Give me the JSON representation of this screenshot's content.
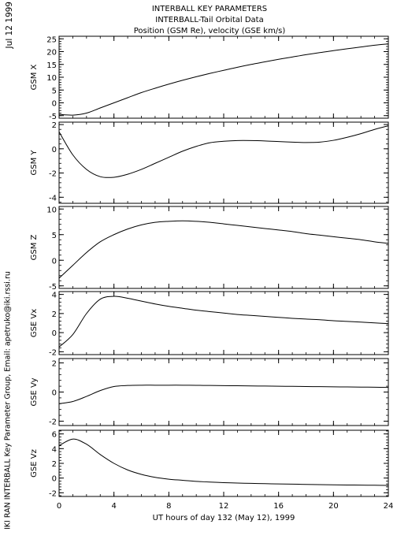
{
  "header": {
    "date": "Jul 12 1999",
    "lines": [
      "INTERBALL KEY PARAMETERS",
      "INTERBALL-Tail Orbital Data",
      "Position (GSM Re), velocity (GSE km/s)"
    ],
    "credit": "IKI RAN INTERBALL Key Parameter Group, Email: apetruko@iki.rssi.ru"
  },
  "chart_data": {
    "type": "line",
    "xlabel": "UT hours of day 132 (May 12), 1999",
    "xlim": [
      0,
      24
    ],
    "xticks": [
      0,
      4,
      8,
      12,
      16,
      20,
      24
    ],
    "panels": [
      {
        "ylabel": "GSM X",
        "ylim": [
          -6,
          26
        ],
        "yticks": [
          -5,
          0,
          5,
          10,
          15,
          20,
          25
        ],
        "x": [
          0,
          1,
          2,
          3,
          4,
          5,
          6,
          7,
          8,
          9,
          10,
          11,
          12,
          13,
          14,
          15,
          16,
          17,
          18,
          19,
          20,
          21,
          22,
          23,
          24
        ],
        "y": [
          -4.5,
          -4.8,
          -4.0,
          -2.0,
          0.0,
          2.0,
          4.0,
          5.7,
          7.3,
          8.8,
          10.2,
          11.5,
          12.7,
          13.9,
          15.0,
          16.0,
          17.0,
          17.9,
          18.8,
          19.6,
          20.4,
          21.1,
          21.8,
          22.5,
          23.0
        ]
      },
      {
        "ylabel": "GSM Y",
        "ylim": [
          -4.5,
          2.2
        ],
        "yticks": [
          -4,
          -2,
          0,
          2
        ],
        "x": [
          0,
          1,
          2,
          3,
          4,
          5,
          6,
          7,
          8,
          9,
          10,
          11,
          12,
          13,
          14,
          15,
          16,
          17,
          18,
          19,
          20,
          21,
          22,
          23,
          24
        ],
        "y": [
          1.4,
          -0.5,
          -1.7,
          -2.3,
          -2.35,
          -2.1,
          -1.7,
          -1.2,
          -0.7,
          -0.2,
          0.2,
          0.5,
          0.62,
          0.68,
          0.68,
          0.65,
          0.6,
          0.55,
          0.52,
          0.55,
          0.7,
          0.95,
          1.25,
          1.6,
          1.9
        ]
      },
      {
        "ylabel": "GSM Z",
        "ylim": [
          -5.5,
          10.5
        ],
        "yticks": [
          -5,
          0,
          5,
          10
        ],
        "x": [
          0,
          1,
          2,
          3,
          4,
          5,
          6,
          7,
          8,
          9,
          10,
          11,
          12,
          13,
          14,
          15,
          16,
          17,
          18,
          19,
          20,
          21,
          22,
          23,
          24
        ],
        "y": [
          -3.5,
          -1.0,
          1.5,
          3.6,
          5.0,
          6.1,
          6.9,
          7.4,
          7.6,
          7.7,
          7.6,
          7.4,
          7.1,
          6.8,
          6.5,
          6.2,
          5.9,
          5.6,
          5.2,
          4.9,
          4.6,
          4.3,
          4.0,
          3.6,
          3.3
        ]
      },
      {
        "ylabel": "GSE Vx",
        "ylim": [
          -2.3,
          4.3
        ],
        "yticks": [
          -2,
          0,
          2,
          4
        ],
        "x": [
          0,
          1,
          2,
          3,
          4,
          5,
          6,
          7,
          8,
          9,
          10,
          11,
          12,
          13,
          14,
          15,
          16,
          17,
          18,
          19,
          20,
          21,
          22,
          23,
          24
        ],
        "y": [
          -1.5,
          -0.2,
          2.0,
          3.5,
          3.8,
          3.6,
          3.3,
          3.0,
          2.75,
          2.55,
          2.35,
          2.2,
          2.05,
          1.9,
          1.8,
          1.7,
          1.6,
          1.5,
          1.42,
          1.35,
          1.25,
          1.18,
          1.1,
          1.02,
          0.95
        ]
      },
      {
        "ylabel": "GSE Vy",
        "ylim": [
          -2.3,
          2.3
        ],
        "yticks": [
          -2,
          0,
          2
        ],
        "x": [
          0,
          1,
          2,
          3,
          4,
          5,
          6,
          7,
          8,
          9,
          10,
          11,
          12,
          13,
          14,
          15,
          16,
          17,
          18,
          19,
          20,
          21,
          22,
          23,
          24
        ],
        "y": [
          -0.8,
          -0.65,
          -0.3,
          0.1,
          0.38,
          0.45,
          0.47,
          0.47,
          0.47,
          0.47,
          0.46,
          0.45,
          0.44,
          0.43,
          0.42,
          0.41,
          0.4,
          0.39,
          0.38,
          0.37,
          0.36,
          0.35,
          0.34,
          0.33,
          0.32
        ]
      },
      {
        "ylabel": "GSE Vz",
        "ylim": [
          -2.5,
          6.5
        ],
        "yticks": [
          -2,
          0,
          2,
          4,
          6
        ],
        "x": [
          0,
          1,
          2,
          3,
          4,
          5,
          6,
          7,
          8,
          9,
          10,
          11,
          12,
          13,
          14,
          15,
          16,
          17,
          18,
          19,
          20,
          21,
          22,
          23,
          24
        ],
        "y": [
          4.4,
          5.3,
          4.6,
          3.2,
          2.0,
          1.1,
          0.5,
          0.1,
          -0.15,
          -0.3,
          -0.45,
          -0.55,
          -0.62,
          -0.68,
          -0.72,
          -0.76,
          -0.8,
          -0.83,
          -0.86,
          -0.89,
          -0.92,
          -0.94,
          -0.96,
          -0.98,
          -1.0
        ]
      }
    ]
  }
}
